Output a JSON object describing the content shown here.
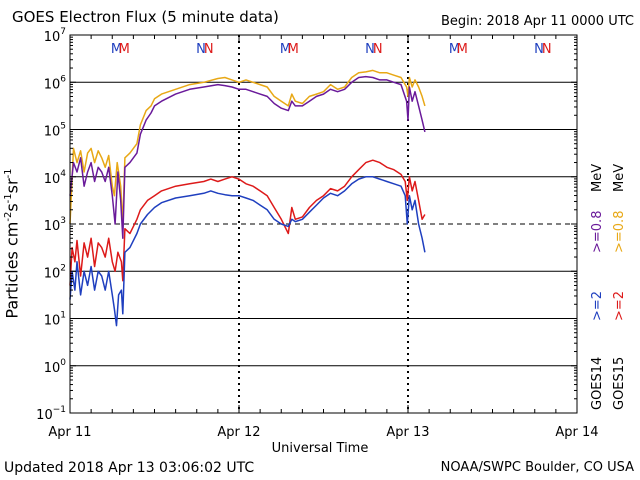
{
  "header": {
    "title": "GOES Electron Flux (5 minute data)",
    "begin": "Begin: 2018 Apr 11 0000 UTC"
  },
  "footer": {
    "updated": "Updated 2018 Apr 13 03:06:02 UTC",
    "credit": "NOAA/SWPC Boulder, CO USA"
  },
  "colors": {
    "goes14_2mev": "#1f3fbf",
    "goes14_08mev": "#6a1a9a",
    "goes15_2mev": "#dd1a1a",
    "goes15_08mev": "#e8a816",
    "n_marker": "#1f3fbf",
    "m_marker": "#dd1a1a"
  },
  "chart_data": {
    "type": "line",
    "title": "GOES Electron Flux (5 minute data)",
    "xlabel": "Universal Time",
    "ylabel_parts": [
      "Particles cm",
      "-2",
      "s",
      "-1",
      "sr",
      "-1"
    ],
    "yscale": "log",
    "ylim_exp": [
      -1,
      7
    ],
    "ytick_exps": [
      -1,
      0,
      1,
      2,
      3,
      4,
      5,
      6,
      7
    ],
    "xlim_hours": [
      0,
      72
    ],
    "x_ticks": [
      {
        "hour": 0,
        "label": "Apr 11"
      },
      {
        "hour": 24,
        "label": "Apr 12"
      },
      {
        "hour": 48,
        "label": "Apr 13"
      },
      {
        "hour": 72,
        "label": "Apr 14"
      }
    ],
    "solid_gridlines_exp": [
      0,
      1,
      2,
      4,
      5,
      6
    ],
    "dashed_gridlines_exp": [
      3
    ],
    "day_boundaries_hours": [
      24,
      48
    ],
    "markers": [
      {
        "hour": 6.6,
        "label": "M",
        "color_key": "n_marker"
      },
      {
        "hour": 7.7,
        "label": "M",
        "color_key": "m_marker"
      },
      {
        "hour": 18.6,
        "label": "N",
        "color_key": "n_marker"
      },
      {
        "hour": 19.7,
        "label": "N",
        "color_key": "m_marker"
      },
      {
        "hour": 30.6,
        "label": "M",
        "color_key": "n_marker"
      },
      {
        "hour": 31.7,
        "label": "M",
        "color_key": "m_marker"
      },
      {
        "hour": 42.6,
        "label": "N",
        "color_key": "n_marker"
      },
      {
        "hour": 43.7,
        "label": "N",
        "color_key": "m_marker"
      },
      {
        "hour": 54.6,
        "label": "M",
        "color_key": "n_marker"
      },
      {
        "hour": 55.7,
        "label": "M",
        "color_key": "m_marker"
      },
      {
        "hour": 66.6,
        "label": "N",
        "color_key": "n_marker"
      },
      {
        "hour": 67.7,
        "label": "N",
        "color_key": "m_marker"
      }
    ],
    "legend": {
      "goes14": "GOES14",
      "goes15": "GOES15",
      "goes14_2mev": ">=2",
      "goes15_2mev": ">=2",
      "goes14_08mev": ">=0.8",
      "goes15_08mev": ">=0.8",
      "mev": "MeV",
      "mev2": "MeV"
    },
    "series": [
      {
        "name": "GOES15 >=0.8 MeV",
        "color_key": "goes15_08mev",
        "points": [
          [
            0,
            3.0
          ],
          [
            0.5,
            4.6
          ],
          [
            1,
            4.3
          ],
          [
            1.5,
            4.55
          ],
          [
            2,
            4.1
          ],
          [
            2.5,
            4.5
          ],
          [
            3,
            4.6
          ],
          [
            3.5,
            4.3
          ],
          [
            4,
            4.55
          ],
          [
            4.5,
            4.4
          ],
          [
            5,
            4.2
          ],
          [
            5.5,
            4.45
          ],
          [
            6,
            3.8
          ],
          [
            6.3,
            3.6
          ],
          [
            6.7,
            4.3
          ],
          [
            7.2,
            3.8
          ],
          [
            7.5,
            3.0
          ],
          [
            7.8,
            4.4
          ],
          [
            8.5,
            4.5
          ],
          [
            9.5,
            4.7
          ],
          [
            10,
            5.1
          ],
          [
            10.8,
            5.4
          ],
          [
            11.5,
            5.5
          ],
          [
            12,
            5.65
          ],
          [
            13,
            5.75
          ],
          [
            15,
            5.85
          ],
          [
            17,
            5.95
          ],
          [
            19,
            6.0
          ],
          [
            21,
            6.08
          ],
          [
            22,
            6.1
          ],
          [
            23,
            6.05
          ],
          [
            24,
            6.0
          ],
          [
            25,
            6.05
          ],
          [
            26,
            6.0
          ],
          [
            27,
            5.95
          ],
          [
            28,
            5.9
          ],
          [
            29,
            5.7
          ],
          [
            30,
            5.6
          ],
          [
            31,
            5.5
          ],
          [
            31.5,
            5.75
          ],
          [
            32,
            5.6
          ],
          [
            33,
            5.55
          ],
          [
            34,
            5.7
          ],
          [
            35,
            5.75
          ],
          [
            36,
            5.8
          ],
          [
            37,
            5.95
          ],
          [
            38,
            5.85
          ],
          [
            39,
            5.9
          ],
          [
            40,
            6.1
          ],
          [
            41,
            6.2
          ],
          [
            42,
            6.22
          ],
          [
            43,
            6.25
          ],
          [
            44,
            6.2
          ],
          [
            45,
            6.2
          ],
          [
            46,
            6.15
          ],
          [
            47,
            6.1
          ],
          [
            47.8,
            5.9
          ],
          [
            48,
            5.7
          ],
          [
            48.2,
            6.1
          ],
          [
            48.6,
            5.9
          ],
          [
            49,
            6.05
          ],
          [
            49.5,
            5.9
          ],
          [
            50,
            5.7
          ],
          [
            50.4,
            5.5
          ]
        ]
      },
      {
        "name": "GOES14 >=0.8 MeV",
        "color_key": "goes14_08mev",
        "points": [
          [
            0,
            3.6
          ],
          [
            0.5,
            4.3
          ],
          [
            1,
            4.1
          ],
          [
            1.5,
            4.4
          ],
          [
            2,
            3.8
          ],
          [
            2.5,
            4.1
          ],
          [
            3,
            4.3
          ],
          [
            3.5,
            3.9
          ],
          [
            4,
            4.2
          ],
          [
            4.5,
            4.1
          ],
          [
            5,
            3.9
          ],
          [
            5.5,
            4.2
          ],
          [
            6,
            3.6
          ],
          [
            6.4,
            3.0
          ],
          [
            6.8,
            4.1
          ],
          [
            7.2,
            3.5
          ],
          [
            7.5,
            2.7
          ],
          [
            7.8,
            4.2
          ],
          [
            8.5,
            4.3
          ],
          [
            9.5,
            4.5
          ],
          [
            10,
            4.9
          ],
          [
            10.8,
            5.2
          ],
          [
            11.5,
            5.35
          ],
          [
            12,
            5.5
          ],
          [
            13,
            5.6
          ],
          [
            15,
            5.75
          ],
          [
            17,
            5.85
          ],
          [
            19,
            5.9
          ],
          [
            21,
            5.95
          ],
          [
            22,
            5.93
          ],
          [
            23,
            5.9
          ],
          [
            24,
            5.85
          ],
          [
            25,
            5.85
          ],
          [
            26,
            5.8
          ],
          [
            27,
            5.75
          ],
          [
            28,
            5.7
          ],
          [
            29,
            5.55
          ],
          [
            30,
            5.45
          ],
          [
            31,
            5.4
          ],
          [
            31.5,
            5.6
          ],
          [
            32,
            5.5
          ],
          [
            33,
            5.5
          ],
          [
            34,
            5.6
          ],
          [
            35,
            5.7
          ],
          [
            36,
            5.75
          ],
          [
            37,
            5.85
          ],
          [
            38,
            5.8
          ],
          [
            39,
            5.85
          ],
          [
            40,
            6.0
          ],
          [
            41,
            6.1
          ],
          [
            42,
            6.12
          ],
          [
            43,
            6.1
          ],
          [
            44,
            6.05
          ],
          [
            45,
            6.05
          ],
          [
            46,
            6.0
          ],
          [
            47,
            5.95
          ],
          [
            47.8,
            5.6
          ],
          [
            48,
            5.2
          ],
          [
            48.2,
            5.9
          ],
          [
            48.6,
            5.6
          ],
          [
            49,
            5.8
          ],
          [
            49.5,
            5.5
          ],
          [
            50,
            5.2
          ],
          [
            50.4,
            4.95
          ]
        ]
      },
      {
        "name": "GOES15 >=2 MeV",
        "color_key": "goes15_2mev",
        "points": [
          [
            0,
            1.7
          ],
          [
            0.3,
            2.5
          ],
          [
            0.7,
            2.2
          ],
          [
            1,
            2.65
          ],
          [
            1.5,
            1.9
          ],
          [
            2,
            2.6
          ],
          [
            2.5,
            2.3
          ],
          [
            3,
            2.7
          ],
          [
            3.5,
            2.1
          ],
          [
            4,
            2.6
          ],
          [
            4.5,
            2.5
          ],
          [
            5,
            2.3
          ],
          [
            5.5,
            2.7
          ],
          [
            6,
            2.2
          ],
          [
            6.4,
            2.0
          ],
          [
            6.8,
            2.4
          ],
          [
            7.3,
            2.2
          ],
          [
            7.5,
            1.8
          ],
          [
            7.8,
            2.9
          ],
          [
            8.5,
            2.8
          ],
          [
            9.5,
            3.1
          ],
          [
            10,
            3.3
          ],
          [
            11,
            3.5
          ],
          [
            12,
            3.6
          ],
          [
            13,
            3.7
          ],
          [
            15,
            3.8
          ],
          [
            17,
            3.85
          ],
          [
            19,
            3.9
          ],
          [
            20,
            3.95
          ],
          [
            21,
            3.9
          ],
          [
            22,
            3.95
          ],
          [
            23,
            4.0
          ],
          [
            24,
            3.95
          ],
          [
            25,
            3.85
          ],
          [
            26,
            3.8
          ],
          [
            27,
            3.7
          ],
          [
            28,
            3.6
          ],
          [
            29,
            3.35
          ],
          [
            30,
            3.1
          ],
          [
            31,
            2.8
          ],
          [
            31.5,
            3.35
          ],
          [
            32,
            3.1
          ],
          [
            33,
            3.15
          ],
          [
            34,
            3.35
          ],
          [
            35,
            3.5
          ],
          [
            36,
            3.6
          ],
          [
            37,
            3.75
          ],
          [
            38,
            3.7
          ],
          [
            39,
            3.8
          ],
          [
            40,
            4.0
          ],
          [
            41,
            4.15
          ],
          [
            42,
            4.3
          ],
          [
            43,
            4.35
          ],
          [
            44,
            4.3
          ],
          [
            45,
            4.2
          ],
          [
            46,
            4.15
          ],
          [
            47,
            4.05
          ],
          [
            47.6,
            3.9
          ],
          [
            47.9,
            3.5
          ],
          [
            48.2,
            4.0
          ],
          [
            48.6,
            3.7
          ],
          [
            49,
            3.9
          ],
          [
            49.5,
            3.5
          ],
          [
            50,
            3.1
          ],
          [
            50.4,
            3.2
          ]
        ]
      },
      {
        "name": "GOES14 >=2 MeV",
        "color_key": "goes14_2mev",
        "points": [
          [
            0,
            1.4
          ],
          [
            0.3,
            2.0
          ],
          [
            0.7,
            1.6
          ],
          [
            1,
            2.2
          ],
          [
            1.5,
            1.5
          ],
          [
            2,
            2.0
          ],
          [
            2.5,
            1.7
          ],
          [
            3,
            2.1
          ],
          [
            3.5,
            1.6
          ],
          [
            4,
            2.0
          ],
          [
            4.5,
            1.9
          ],
          [
            5,
            1.6
          ],
          [
            5.5,
            2.0
          ],
          [
            6,
            1.5
          ],
          [
            6.3,
            1.2
          ],
          [
            6.6,
            0.85
          ],
          [
            6.9,
            1.5
          ],
          [
            7.3,
            1.6
          ],
          [
            7.5,
            1.1
          ],
          [
            7.8,
            2.4
          ],
          [
            8.5,
            2.5
          ],
          [
            9.5,
            2.8
          ],
          [
            10,
            3.0
          ],
          [
            11,
            3.2
          ],
          [
            12,
            3.35
          ],
          [
            13,
            3.45
          ],
          [
            15,
            3.55
          ],
          [
            17,
            3.6
          ],
          [
            19,
            3.65
          ],
          [
            20,
            3.7
          ],
          [
            21,
            3.65
          ],
          [
            22,
            3.62
          ],
          [
            23,
            3.6
          ],
          [
            24,
            3.6
          ],
          [
            25,
            3.55
          ],
          [
            26,
            3.5
          ],
          [
            27,
            3.4
          ],
          [
            28,
            3.3
          ],
          [
            29,
            3.1
          ],
          [
            30,
            3.0
          ],
          [
            31,
            2.95
          ],
          [
            31.5,
            3.1
          ],
          [
            32,
            3.05
          ],
          [
            33,
            3.1
          ],
          [
            34,
            3.25
          ],
          [
            35,
            3.4
          ],
          [
            36,
            3.55
          ],
          [
            37,
            3.65
          ],
          [
            38,
            3.6
          ],
          [
            39,
            3.7
          ],
          [
            40,
            3.85
          ],
          [
            41,
            3.95
          ],
          [
            42,
            4.0
          ],
          [
            43,
            4.0
          ],
          [
            44,
            3.95
          ],
          [
            45,
            3.9
          ],
          [
            46,
            3.85
          ],
          [
            47,
            3.8
          ],
          [
            47.6,
            3.6
          ],
          [
            47.9,
            3.0
          ],
          [
            48.2,
            3.6
          ],
          [
            48.6,
            3.3
          ],
          [
            49,
            3.5
          ],
          [
            49.5,
            3.0
          ],
          [
            50,
            2.7
          ],
          [
            50.4,
            2.4
          ]
        ]
      }
    ]
  }
}
